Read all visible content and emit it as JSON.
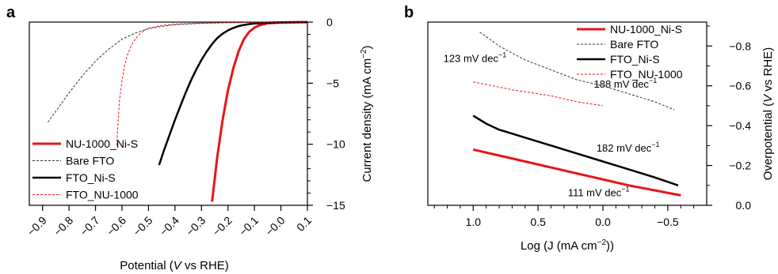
{
  "chart_data": [
    {
      "panel_label": "a",
      "type": "line",
      "xlabel_parts": [
        "Potential (",
        "V",
        " vs RHE)"
      ],
      "ylabel": "Current density (mA cm−2)",
      "ylabel_parts": [
        "Current density (mA cm",
        "−2",
        ")"
      ],
      "xlim": [
        -0.95,
        0.1
      ],
      "ylim": [
        -15,
        0
      ],
      "x_reversed": false,
      "y_axis_side": "right",
      "x_ticks": [
        -0.9,
        -0.8,
        -0.7,
        -0.6,
        -0.5,
        -0.4,
        -0.3,
        -0.2,
        -0.1,
        0.0,
        0.1
      ],
      "x_tick_labels": [
        "−0.9",
        "−0.8",
        "−0.7",
        "−0.6",
        "−0.5",
        "−0.4",
        "−0.3",
        "−0.2",
        "−0.1",
        "−0.0",
        "0.1"
      ],
      "y_ticks": [
        0,
        -5,
        -10,
        -15
      ],
      "y_tick_labels": [
        "0",
        "−5",
        "−10",
        "−15"
      ],
      "legend_position": "bottom-left",
      "series": [
        {
          "name": "NU-1000_Ni-S",
          "color": "#e8141b",
          "dash": "solid",
          "width": 3,
          "x": [
            -0.26,
            -0.24,
            -0.22,
            -0.2,
            -0.18,
            -0.16,
            -0.14,
            -0.12,
            -0.1,
            -0.08,
            -0.05,
            0.0,
            0.1
          ],
          "y": [
            -14.7,
            -11.0,
            -8.0,
            -5.6,
            -3.8,
            -2.4,
            -1.4,
            -0.8,
            -0.45,
            -0.25,
            -0.1,
            -0.03,
            0.0
          ]
        },
        {
          "name": "Bare FTO",
          "color": "#333333",
          "dash": "3,2",
          "width": 1,
          "x": [
            -0.88,
            -0.85,
            -0.8,
            -0.75,
            -0.7,
            -0.65,
            -0.6,
            -0.55,
            -0.5,
            -0.45,
            -0.4,
            -0.3,
            -0.2,
            -0.1,
            0.0,
            0.1
          ],
          "y": [
            -8.2,
            -7.3,
            -5.8,
            -4.4,
            -3.2,
            -2.2,
            -1.4,
            -0.9,
            -0.55,
            -0.35,
            -0.22,
            -0.1,
            -0.05,
            -0.02,
            -0.01,
            0.0
          ]
        },
        {
          "name": "FTO_Ni-S",
          "color": "#000000",
          "dash": "solid",
          "width": 2.5,
          "x": [
            -0.46,
            -0.44,
            -0.42,
            -0.4,
            -0.38,
            -0.36,
            -0.34,
            -0.32,
            -0.3,
            -0.28,
            -0.26,
            -0.24,
            -0.22,
            -0.2,
            -0.18,
            -0.16,
            -0.14,
            -0.12,
            -0.1,
            -0.05,
            0.0,
            0.1
          ],
          "y": [
            -11.7,
            -10.4,
            -9.2,
            -8.0,
            -6.9,
            -5.8,
            -4.8,
            -3.9,
            -3.1,
            -2.4,
            -1.8,
            -1.3,
            -0.95,
            -0.68,
            -0.48,
            -0.33,
            -0.23,
            -0.16,
            -0.11,
            -0.05,
            -0.02,
            0.0
          ]
        },
        {
          "name": "FTO_NU-1000",
          "color": "#e8141b",
          "dash": "3,2",
          "width": 1,
          "x": [
            -0.62,
            -0.615,
            -0.61,
            -0.6,
            -0.59,
            -0.58,
            -0.56,
            -0.54,
            -0.52,
            -0.5,
            -0.45,
            -0.4,
            -0.3,
            -0.2,
            -0.1,
            0.0,
            0.1
          ],
          "y": [
            -10.1,
            -8.2,
            -6.5,
            -4.8,
            -3.6,
            -2.7,
            -1.7,
            -1.1,
            -0.75,
            -0.5,
            -0.28,
            -0.16,
            -0.08,
            -0.04,
            -0.02,
            -0.01,
            0.0
          ]
        }
      ]
    },
    {
      "panel_label": "b",
      "type": "line",
      "xlabel_parts": [
        "Log (J (mA cm",
        "−2",
        "))"
      ],
      "ylabel": "Overpotential (V vs RHE)",
      "ylabel_parts": [
        "Overpotential (",
        "V",
        " vs RHE)"
      ],
      "xlim": [
        1.35,
        -0.8
      ],
      "ylim": [
        0.0,
        -0.92
      ],
      "x_reversed": true,
      "y_axis_side": "right",
      "x_ticks": [
        1.0,
        0.5,
        0.0,
        -0.5
      ],
      "x_tick_labels": [
        "1.0",
        "0.5",
        "0.0",
        "−0.5"
      ],
      "y_ticks": [
        0.0,
        -0.2,
        -0.4,
        -0.6,
        -0.8
      ],
      "y_tick_labels": [
        "0.0",
        "−0.2",
        "−0.4",
        "−0.6",
        "−0.8"
      ],
      "legend_position": "top-right",
      "series": [
        {
          "name": "NU-1000_Ni-S",
          "color": "#e8141b",
          "dash": "solid",
          "width": 3,
          "x": [
            1.0,
            0.6,
            0.2,
            -0.2,
            -0.6
          ],
          "y": [
            -0.28,
            -0.22,
            -0.16,
            -0.1,
            -0.05
          ]
        },
        {
          "name": "Bare FTO",
          "color": "#333333",
          "dash": "3,2",
          "width": 1,
          "x": [
            0.95,
            0.8,
            0.6,
            0.4,
            0.2,
            0.0,
            -0.2,
            -0.4,
            -0.55
          ],
          "y": [
            -0.87,
            -0.8,
            -0.73,
            -0.68,
            -0.63,
            -0.6,
            -0.56,
            -0.52,
            -0.48
          ]
        },
        {
          "name": "FTO_Ni-S",
          "color": "#000000",
          "dash": "solid",
          "width": 2.5,
          "x": [
            1.0,
            0.9,
            0.8,
            0.6,
            0.4,
            0.2,
            0.0,
            -0.2,
            -0.4,
            -0.58
          ],
          "y": [
            -0.45,
            -0.41,
            -0.38,
            -0.34,
            -0.3,
            -0.26,
            -0.22,
            -0.18,
            -0.14,
            -0.1
          ]
        },
        {
          "name": "FTO_NU-1000",
          "color": "#e8141b",
          "dash": "3,2",
          "width": 1,
          "x": [
            1.0,
            0.7,
            0.4,
            0.2,
            0.0
          ],
          "y": [
            -0.62,
            -0.58,
            -0.55,
            -0.52,
            -0.5
          ]
        }
      ],
      "annotations": [
        {
          "base": "123 mV dec",
          "sup": "−1",
          "x": 1.23,
          "y": -0.72
        },
        {
          "base": "188 mV dec",
          "sup": "−1",
          "x": 0.07,
          "y": -0.59
        },
        {
          "base": "182 mV dec",
          "sup": "−1",
          "x": 0.05,
          "y": -0.27
        },
        {
          "base": "111 mV dec",
          "sup": "−1",
          "x": 0.27,
          "y": -0.045
        }
      ]
    }
  ]
}
